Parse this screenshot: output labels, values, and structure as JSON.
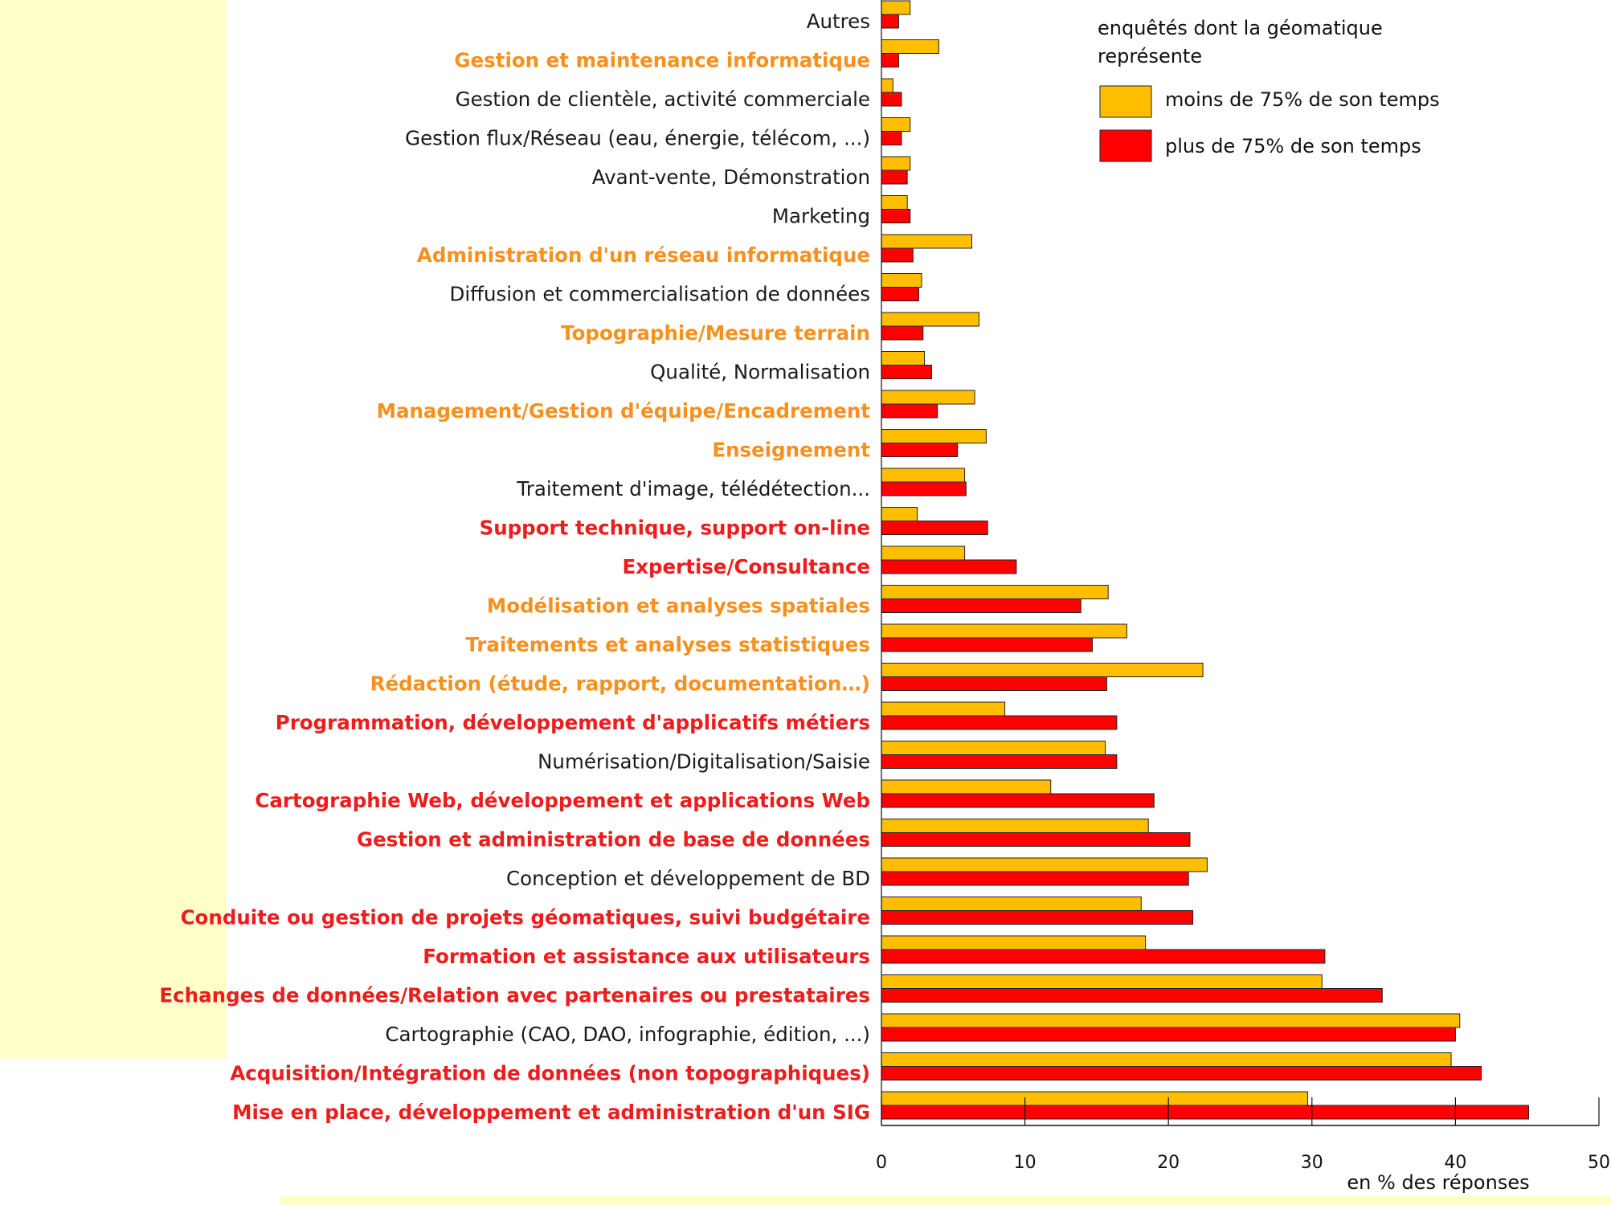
{
  "chart_data": {
    "type": "bar",
    "orientation": "horizontal",
    "categories": [
      {
        "label": "Autres",
        "style": "normal"
      },
      {
        "label": "Gestion et maintenance informatique",
        "style": "orange"
      },
      {
        "label": "Gestion de clientèle, activité commerciale",
        "style": "normal"
      },
      {
        "label": "Gestion flux/Réseau (eau, énergie, télécom, ...)",
        "style": "normal"
      },
      {
        "label": "Avant-vente, Démonstration",
        "style": "normal"
      },
      {
        "label": "Marketing",
        "style": "normal"
      },
      {
        "label": "Administration d'un réseau informatique",
        "style": "orange"
      },
      {
        "label": "Diffusion et commercialisation de données",
        "style": "normal"
      },
      {
        "label": "Topographie/Mesure terrain",
        "style": "orange"
      },
      {
        "label": "Qualité, Normalisation",
        "style": "normal"
      },
      {
        "label": "Management/Gestion d'équipe/Encadrement",
        "style": "orange"
      },
      {
        "label": "Enseignement",
        "style": "orange"
      },
      {
        "label": "Traitement d'image, télédétection...",
        "style": "normal"
      },
      {
        "label": "Support technique, support on-line",
        "style": "red"
      },
      {
        "label": "Expertise/Consultance",
        "style": "red"
      },
      {
        "label": "Modélisation et analyses spatiales",
        "style": "orange"
      },
      {
        "label": "Traitements et analyses statistiques",
        "style": "orange"
      },
      {
        "label": "Rédaction (étude, rapport, documentation…)",
        "style": "orange"
      },
      {
        "label": "Programmation, développement d'applicatifs métiers",
        "style": "red"
      },
      {
        "label": "Numérisation/Digitalisation/Saisie",
        "style": "normal"
      },
      {
        "label": "Cartographie Web, développement et applications Web",
        "style": "red"
      },
      {
        "label": "Gestion et administration de base de données",
        "style": "red"
      },
      {
        "label": "Conception et développement de BD",
        "style": "normal"
      },
      {
        "label": "Conduite ou gestion de projets géomatiques, suivi budgétaire",
        "style": "red"
      },
      {
        "label": "Formation et assistance aux utilisateurs",
        "style": "red"
      },
      {
        "label": "Echanges de données/Relation avec partenaires ou prestataires",
        "style": "red"
      },
      {
        "label": "Cartographie (CAO, DAO, infographie, édition, ...)",
        "style": "normal"
      },
      {
        "label": "Acquisition/Intégration de données (non topographiques)",
        "style": "red"
      },
      {
        "label": "Mise en place, développement et administration d'un SIG",
        "style": "red"
      }
    ],
    "series": [
      {
        "name": "moins de 75% de son temps",
        "color": "#ffbe00",
        "values": [
          2.0,
          4.0,
          0.8,
          2.0,
          2.0,
          1.8,
          6.3,
          2.8,
          6.8,
          3.0,
          6.5,
          7.3,
          5.8,
          2.5,
          5.8,
          15.8,
          17.1,
          22.4,
          8.6,
          15.6,
          11.8,
          18.6,
          22.7,
          18.1,
          18.4,
          30.7,
          40.3,
          39.7,
          29.7
        ]
      },
      {
        "name": "plus de 75% de son temps",
        "color": "#ff0000",
        "values": [
          1.2,
          1.2,
          1.4,
          1.4,
          1.8,
          2.0,
          2.2,
          2.6,
          2.9,
          3.5,
          3.9,
          5.3,
          5.9,
          7.4,
          9.4,
          13.9,
          14.7,
          15.7,
          16.4,
          16.4,
          19.0,
          21.5,
          21.4,
          21.7,
          30.9,
          34.9,
          40.0,
          41.8,
          45.1
        ]
      }
    ],
    "xlim": [
      0,
      50
    ],
    "xticks": [
      0,
      10,
      20,
      30,
      40,
      50
    ],
    "xlabel": "en % des réponses",
    "legend": {
      "title": "enquêtés dont la géomatique représente",
      "title_lines": [
        "enquêtés dont la géomatique",
        "représente"
      ],
      "position": "top-right"
    }
  },
  "colors": {
    "normal_label": "#1a1a1a",
    "orange_label": "#f7901e",
    "red_label": "#ee1c1c",
    "panel_background": "#ffffc9"
  }
}
